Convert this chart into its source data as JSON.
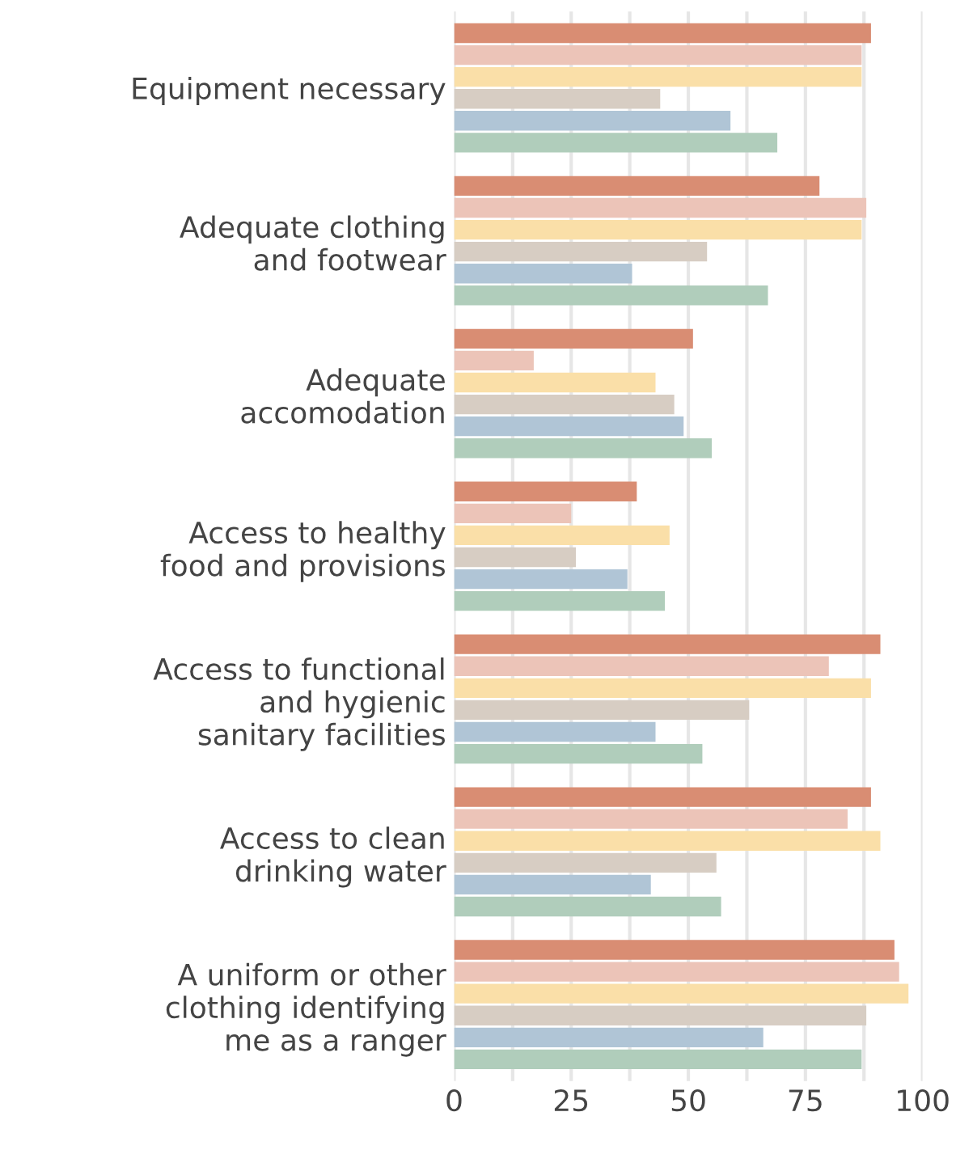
{
  "chart_data": {
    "type": "bar",
    "orientation": "horizontal",
    "categories": [
      "Equipment necessary",
      "Adequate clothing\nand footwear",
      "Adequate\naccomodation",
      "Access to healthy\nfood and provisions",
      "Access to functional\nand hygienic\nsanitary facilities",
      "Access to clean\ndrinking water",
      "A uniform or other\nclothing identifying\nme as a ranger"
    ],
    "series": [
      {
        "color": "#d98d73",
        "values": [
          89,
          78,
          51,
          39,
          91,
          89,
          94
        ]
      },
      {
        "color": "#ecc4b8",
        "values": [
          87,
          88,
          17,
          25,
          80,
          84,
          95
        ]
      },
      {
        "color": "#fadfa8",
        "values": [
          87,
          87,
          43,
          46,
          89,
          91,
          97
        ]
      },
      {
        "color": "#d7cdc3",
        "values": [
          44,
          54,
          47,
          26,
          63,
          56,
          88
        ]
      },
      {
        "color": "#b0c5d6",
        "values": [
          59,
          38,
          49,
          37,
          43,
          42,
          66
        ]
      },
      {
        "color": "#b0cdbb",
        "values": [
          69,
          67,
          55,
          45,
          53,
          57,
          87
        ]
      }
    ],
    "xlim": [
      0,
      100
    ],
    "xticks": [
      0,
      {
        "value": 12.5,
        "label": null
      },
      25,
      {
        "value": 37.5,
        "label": null
      },
      50,
      {
        "value": 62.5,
        "label": null
      },
      75,
      {
        "value": 87.5,
        "label": null
      },
      100
    ],
    "grid": "x",
    "legend": false
  }
}
